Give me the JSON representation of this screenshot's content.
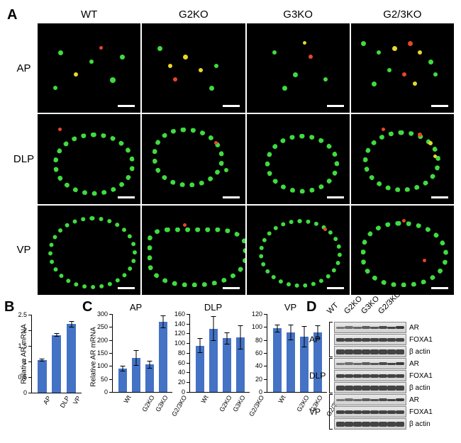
{
  "panelA": {
    "label": "A",
    "columns": [
      "WT",
      "G2KO",
      "G3KO",
      "G2/3KO"
    ],
    "rows": [
      "AP",
      "DLP",
      "VP"
    ],
    "colors": {
      "background": "#000000",
      "green": "#3fdc3f",
      "red": "#e8452a",
      "yellow": "#e8d82a",
      "scale": "#ffffff"
    }
  },
  "panelB": {
    "label": "B",
    "ylabel": "Relative AR mRNA",
    "categories": [
      "AP",
      "DLP",
      "VP"
    ],
    "values": [
      1.05,
      1.85,
      2.2
    ],
    "errors": [
      0.05,
      0.05,
      0.1
    ],
    "ylim": [
      0,
      2.5
    ],
    "ytick_step": 0.5,
    "bar_color": "#4472c4"
  },
  "panelC": {
    "label": "C",
    "ylabel": "Relative AR mRNA",
    "categories": [
      "Wt",
      "G2KO",
      "G3KO",
      "G2/3KO"
    ],
    "charts": [
      {
        "title": "AP",
        "values": [
          90,
          130,
          105,
          270
        ],
        "errors": [
          12,
          30,
          15,
          25
        ],
        "ylim": [
          0,
          300
        ],
        "yticks": [
          0,
          50,
          100,
          150,
          200,
          250,
          300
        ]
      },
      {
        "title": "DLP",
        "values": [
          95,
          130,
          110,
          112
        ],
        "errors": [
          15,
          25,
          12,
          25
        ],
        "ylim": [
          0,
          160
        ],
        "yticks": [
          0,
          20,
          40,
          60,
          80,
          100,
          120,
          140,
          160
        ]
      },
      {
        "title": "VP",
        "values": [
          98,
          92,
          85,
          92
        ],
        "errors": [
          6,
          12,
          16,
          10
        ],
        "ylim": [
          0,
          120
        ],
        "yticks": [
          0,
          20,
          40,
          60,
          80,
          100,
          120
        ]
      }
    ],
    "bar_color": "#4472c4"
  },
  "panelD": {
    "label": "D",
    "columns": [
      "WT",
      "G2KO",
      "G3KO",
      "G2/3KO"
    ],
    "lobes": [
      "AP",
      "DLP",
      "VP"
    ],
    "proteins": [
      "AR",
      "FOXA1",
      "β actin"
    ]
  }
}
